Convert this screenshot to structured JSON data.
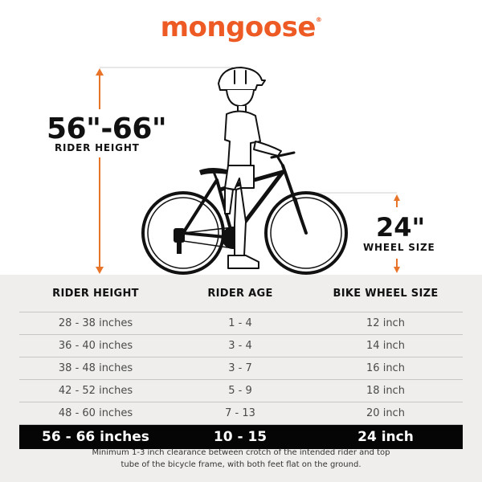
{
  "brand": {
    "name": "mongoose",
    "trademark": "®",
    "color": "#ee5a24"
  },
  "rider_height_callout": {
    "value": "56\"-66\"",
    "label": "RIDER HEIGHT"
  },
  "wheel_size_callout": {
    "value": "24\"",
    "label": "WHEEL SIZE"
  },
  "illustration": {
    "subject": "child-on-bicycle-illustration",
    "arrow_color": "#e8742a"
  },
  "size_table": {
    "headers": [
      "RIDER HEIGHT",
      "RIDER AGE",
      "BIKE WHEEL SIZE"
    ],
    "rows": [
      [
        "28 - 38 inches",
        "1 - 4",
        "12 inch"
      ],
      [
        "36 - 40 inches",
        "3 - 4",
        "14 inch"
      ],
      [
        "38 - 48 inches",
        "3 - 7",
        "16 inch"
      ],
      [
        "42 - 52 inches",
        "5 - 9",
        "18 inch"
      ],
      [
        "48 - 60 inches",
        "7 - 13",
        "20 inch"
      ]
    ],
    "highlighted_row": [
      "56 - 66 inches",
      "10 - 15",
      "24 inch"
    ]
  },
  "footnote": {
    "line1": "Minimum 1-3 inch clearance between crotch of the intended rider and top",
    "line2": "tube of the bicycle frame, with both feet flat on the ground."
  }
}
